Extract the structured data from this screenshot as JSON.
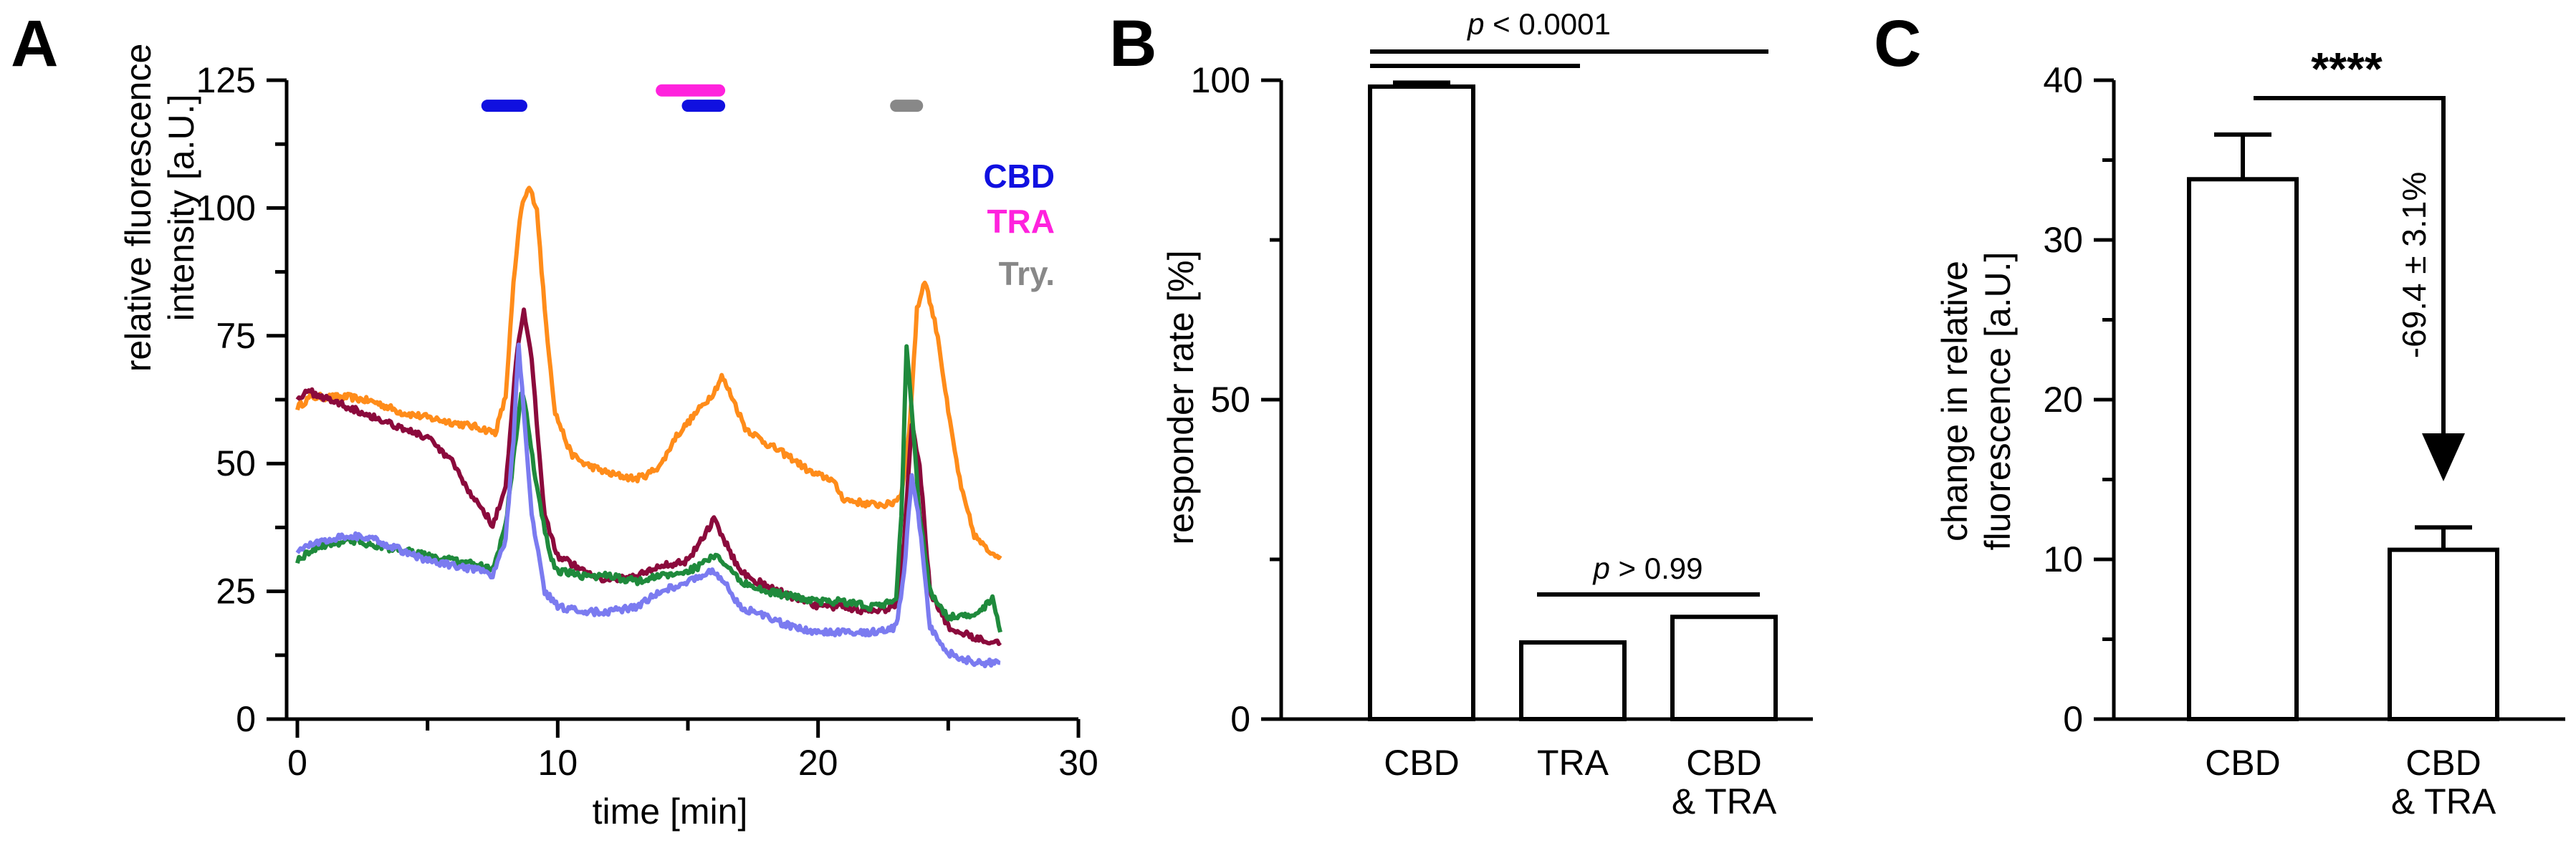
{
  "figure_labels": {
    "a": "A",
    "b": "B",
    "c": "C"
  },
  "chart_data": [
    {
      "panel": "A",
      "type": "line",
      "xlabel": "time [min]",
      "ylabel_lines": [
        "relative fluorescence",
        "intensity [a.U.]"
      ],
      "xlim": [
        0,
        30
      ],
      "ylim": [
        0,
        125
      ],
      "xticks": [
        0,
        10,
        20,
        30
      ],
      "yticks": [
        0,
        25,
        50,
        75,
        100,
        125
      ],
      "legend_position": "top-right",
      "legend": [
        {
          "label": "CBD",
          "color": "#1010e0"
        },
        {
          "label": "TRA",
          "color": "#ff22dd"
        },
        {
          "label": "Try.",
          "color": "#888888"
        }
      ],
      "application_bars": [
        {
          "label": "CBD",
          "color": "#1010e0",
          "x_start": 7.3,
          "x_end": 8.6,
          "y": 120
        },
        {
          "label": "TRA",
          "color": "#ff22dd",
          "x_start": 14.0,
          "x_end": 16.2,
          "y": 123
        },
        {
          "label": "CBD",
          "color": "#1010e0",
          "x_start": 15.0,
          "x_end": 16.2,
          "y": 120
        },
        {
          "label": "Try.",
          "color": "#888888",
          "x_start": 23.0,
          "x_end": 23.8,
          "y": 120
        }
      ],
      "series": [
        {
          "name": "trace-orange",
          "color": "#ff8c1a",
          "keys": [
            [
              0,
              61
            ],
            [
              0.5,
              63
            ],
            [
              1,
              63
            ],
            [
              2,
              63
            ],
            [
              3,
              62
            ],
            [
              4,
              60
            ],
            [
              5,
              59
            ],
            [
              6,
              58
            ],
            [
              7,
              57
            ],
            [
              7.6,
              56
            ],
            [
              8,
              63
            ],
            [
              8.3,
              85
            ],
            [
              8.6,
              100
            ],
            [
              8.9,
              104
            ],
            [
              9.2,
              100
            ],
            [
              9.5,
              80
            ],
            [
              9.9,
              60
            ],
            [
              10.5,
              52
            ],
            [
              11,
              50
            ],
            [
              12,
              48
            ],
            [
              13,
              47
            ],
            [
              13.5,
              48
            ],
            [
              14,
              50
            ],
            [
              14.5,
              55
            ],
            [
              15,
              58
            ],
            [
              15.5,
              61
            ],
            [
              16,
              64
            ],
            [
              16.3,
              67
            ],
            [
              16.7,
              63
            ],
            [
              17.2,
              57
            ],
            [
              18,
              54
            ],
            [
              19,
              51
            ],
            [
              19.8,
              48
            ],
            [
              20.5,
              47
            ],
            [
              21,
              43
            ],
            [
              22,
              42
            ],
            [
              22.8,
              42
            ],
            [
              23.2,
              44
            ],
            [
              23.5,
              56
            ],
            [
              23.8,
              80
            ],
            [
              24.1,
              86
            ],
            [
              24.6,
              75
            ],
            [
              25,
              60
            ],
            [
              25.5,
              45
            ],
            [
              26,
              36
            ],
            [
              26.5,
              33
            ],
            [
              27,
              32
            ]
          ]
        },
        {
          "name": "trace-maroon",
          "color": "#8b0a3c",
          "keys": [
            [
              0,
              63
            ],
            [
              0.5,
              64
            ],
            [
              1,
              63
            ],
            [
              2,
              61
            ],
            [
              3,
              59
            ],
            [
              4,
              57
            ],
            [
              5,
              55
            ],
            [
              6,
              50
            ],
            [
              6.5,
              45
            ],
            [
              7,
              42
            ],
            [
              7.5,
              38
            ],
            [
              8,
              45
            ],
            [
              8.4,
              70
            ],
            [
              8.7,
              80
            ],
            [
              9,
              70
            ],
            [
              9.5,
              40
            ],
            [
              10,
              32
            ],
            [
              11,
              29
            ],
            [
              12,
              27
            ],
            [
              13,
              28
            ],
            [
              14,
              30
            ],
            [
              15,
              31
            ],
            [
              15.5,
              35
            ],
            [
              16,
              39
            ],
            [
              16.5,
              34
            ],
            [
              17,
              29
            ],
            [
              18,
              26
            ],
            [
              19,
              24
            ],
            [
              20,
              22
            ],
            [
              21,
              22
            ],
            [
              22,
              21
            ],
            [
              23,
              22
            ],
            [
              23.3,
              35
            ],
            [
              23.6,
              58
            ],
            [
              23.9,
              50
            ],
            [
              24.3,
              25
            ],
            [
              25,
              18
            ],
            [
              26,
              16
            ],
            [
              27,
              15
            ]
          ]
        },
        {
          "name": "trace-green",
          "color": "#1f8a3c",
          "keys": [
            [
              0,
              31
            ],
            [
              0.5,
              33
            ],
            [
              1,
              34
            ],
            [
              2,
              35
            ],
            [
              3,
              34
            ],
            [
              4,
              33
            ],
            [
              5,
              32
            ],
            [
              6,
              31
            ],
            [
              7,
              30
            ],
            [
              7.5,
              29
            ],
            [
              8,
              38
            ],
            [
              8.4,
              55
            ],
            [
              8.6,
              64
            ],
            [
              8.8,
              60
            ],
            [
              9.2,
              45
            ],
            [
              9.7,
              32
            ],
            [
              10,
              29
            ],
            [
              11,
              28
            ],
            [
              12,
              28
            ],
            [
              13,
              27
            ],
            [
              14,
              28
            ],
            [
              15,
              29
            ],
            [
              15.5,
              30
            ],
            [
              16,
              32
            ],
            [
              16.5,
              30
            ],
            [
              17,
              27
            ],
            [
              18,
              25
            ],
            [
              19,
              24
            ],
            [
              20,
              23
            ],
            [
              21,
              23
            ],
            [
              22,
              22
            ],
            [
              23,
              23
            ],
            [
              23.2,
              40
            ],
            [
              23.4,
              73
            ],
            [
              23.6,
              60
            ],
            [
              23.9,
              40
            ],
            [
              24.3,
              25
            ],
            [
              25,
              20
            ],
            [
              26,
              20
            ],
            [
              26.4,
              22
            ],
            [
              26.7,
              24
            ],
            [
              27,
              17
            ]
          ]
        },
        {
          "name": "trace-blue",
          "color": "#7b7bf0",
          "keys": [
            [
              0,
              33
            ],
            [
              0.5,
              34
            ],
            [
              1,
              35
            ],
            [
              2,
              36
            ],
            [
              3,
              35
            ],
            [
              4,
              33
            ],
            [
              5,
              31
            ],
            [
              6,
              30
            ],
            [
              7,
              29
            ],
            [
              7.5,
              28
            ],
            [
              8,
              35
            ],
            [
              8.3,
              55
            ],
            [
              8.5,
              73
            ],
            [
              8.7,
              60
            ],
            [
              9,
              40
            ],
            [
              9.5,
              25
            ],
            [
              10,
              22
            ],
            [
              11,
              21
            ],
            [
              12,
              21
            ],
            [
              13,
              22
            ],
            [
              14,
              25
            ],
            [
              15,
              27
            ],
            [
              15.5,
              28
            ],
            [
              16,
              29
            ],
            [
              16.5,
              26
            ],
            [
              17,
              22
            ],
            [
              18,
              20
            ],
            [
              19,
              18
            ],
            [
              20,
              17
            ],
            [
              21,
              17
            ],
            [
              22,
              17
            ],
            [
              23,
              18
            ],
            [
              23.3,
              28
            ],
            [
              23.6,
              48
            ],
            [
              23.9,
              38
            ],
            [
              24.3,
              18
            ],
            [
              25,
              13
            ],
            [
              26,
              11
            ],
            [
              27,
              11
            ]
          ]
        }
      ]
    },
    {
      "panel": "B",
      "type": "bar",
      "categories": [
        "CBD",
        "TRA",
        "CBD & TRA"
      ],
      "category_lines": [
        [
          "CBD"
        ],
        [
          "TRA"
        ],
        [
          "CBD",
          "& TRA"
        ]
      ],
      "values": [
        99,
        12,
        16
      ],
      "errors": [
        0.4,
        0,
        0
      ],
      "ylabel": "responder rate [%]",
      "ylim": [
        0,
        100
      ],
      "yticks": [
        0,
        50,
        100
      ],
      "brackets": [
        {
          "label_prefix": "p",
          "label_suffix": " < 0.0001",
          "from": 0,
          "to": 2
        },
        {
          "label_prefix": "p",
          "label_suffix": " > 0.99",
          "from": 1,
          "to": 2
        }
      ]
    },
    {
      "panel": "C",
      "type": "bar",
      "categories": [
        "CBD",
        "CBD & TRA"
      ],
      "category_lines": [
        [
          "CBD"
        ],
        [
          "CBD",
          "& TRA"
        ]
      ],
      "values": [
        33.8,
        10.6
      ],
      "errors": [
        2.8,
        1.4
      ],
      "ylabel_lines": [
        "change in relative",
        "fluorescence [a.U.]"
      ],
      "ylim": [
        0,
        40
      ],
      "yticks": [
        0,
        10,
        20,
        30,
        40
      ],
      "significance": "****",
      "change_label": "-69.4 ± 3.1%"
    }
  ]
}
